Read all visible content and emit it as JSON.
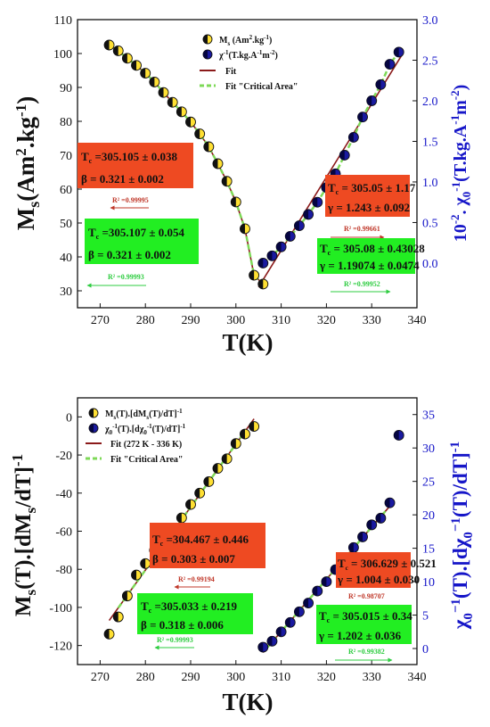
{
  "chart_data": [
    {
      "type": "scatter",
      "xlabel": "T(K)",
      "ylabel": "M_s(Am^2.kg^-1)",
      "ylabel_right": "10^-2. χ0^-1(T.kg.A^-1m^-2)",
      "xlim": [
        265,
        340
      ],
      "ylim": [
        25,
        110
      ],
      "ylim_right": [
        -0.55,
        3.0
      ],
      "xticks": [
        270,
        280,
        290,
        300,
        310,
        320,
        330,
        340
      ],
      "yticks": [
        30,
        40,
        50,
        60,
        70,
        80,
        90,
        100,
        110
      ],
      "yticks_right": [
        0.0,
        0.5,
        1.0,
        1.5,
        2.0,
        2.5,
        3.0
      ],
      "legend": {
        "ms": "M_s (Am^2.kg^-1)",
        "chi": "χ^-1(T.kg.A^-1m^-2)",
        "fit": "Fit",
        "fit_critical": "Fit \"Critical Area\""
      },
      "series": [
        {
          "name": "M_s (Am^2.kg^-1)",
          "axis": "left",
          "x": [
            272,
            274,
            276,
            278,
            280,
            282,
            284,
            286,
            288,
            290,
            292,
            294,
            296,
            298,
            300,
            302,
            304,
            306
          ],
          "y": [
            102.5,
            100.8,
            98.6,
            96.5,
            94.2,
            91.6,
            88.5,
            85.6,
            82.8,
            79.8,
            76.3,
            72.5,
            67.5,
            62.3,
            56.2,
            48.3,
            34.6,
            32.0
          ]
        },
        {
          "name": "χ^-1(T.kg.A^-1m^-2)",
          "axis": "right",
          "x": [
            306,
            308,
            310,
            312,
            314,
            316,
            318,
            320,
            322,
            324,
            326,
            328,
            330,
            332,
            334,
            336
          ],
          "y": [
            0.0,
            0.09,
            0.2,
            0.33,
            0.46,
            0.6,
            0.75,
            0.93,
            1.1,
            1.33,
            1.55,
            1.8,
            2.0,
            2.2,
            2.45,
            2.6
          ]
        }
      ],
      "annotations": {
        "box1": {
          "l1": "T",
          "l1s": "c",
          "l1v": " =305.105 ±  0.038",
          "l2": "β = 0.321 ± 0.002",
          "r2": "R² =0.99995"
        },
        "box2": {
          "l1": "T",
          "l1s": "c",
          "l1v": " =305.107 ±  0.054",
          "l2": "β = 0.321 ± 0.002",
          "r2": "R² =0.99993"
        },
        "box3": {
          "l1": "T",
          "l1s": "c",
          "l1v": " = 305.05 ± 1.17",
          "l2": "γ = 1.243 ± 0.092",
          "r2": "R² =0.99661"
        },
        "box4": {
          "l1": "T",
          "l1s": "c",
          "l1v": " = 305.08 ± 0.43028",
          "l2": "γ = 1.19074 ± 0.0474",
          "r2": "R² =0.99952"
        }
      }
    },
    {
      "type": "scatter",
      "xlabel": "T(K)",
      "ylabel": "M_s(T).[dM_s/dT]^-1",
      "ylabel_right": "χ0^-1(T).[dχ0^-1(T)/dT]^-1",
      "xlim": [
        265,
        340
      ],
      "ylim": [
        -130,
        10
      ],
      "ylim_right": [
        -2.4,
        37.5
      ],
      "xticks": [
        270,
        280,
        290,
        300,
        310,
        320,
        330,
        340
      ],
      "yticks": [
        0,
        -20,
        -40,
        -60,
        -80,
        -100,
        -120
      ],
      "yticks_right": [
        0,
        5,
        10,
        15,
        20,
        25,
        30,
        35
      ],
      "legend": {
        "ms": "M_s(T).[dM_s(T)/dT]^-1",
        "chi": "χ0^-1(T).[dχ0^-1(T)/dT]^-1",
        "fit": "Fit (272 K - 336 K)",
        "fit_critical": "Fit \"Critical Area\""
      },
      "series": [
        {
          "name": "M_s(T).[dM_s(T)/dT]^-1",
          "axis": "left",
          "x": [
            272,
            274,
            276,
            278,
            280,
            282,
            284,
            286,
            288,
            290,
            292,
            294,
            296,
            298,
            300,
            302,
            304
          ],
          "y": [
            -114,
            -105,
            -94,
            -83,
            -77,
            -70,
            -64,
            -60,
            -53,
            -46,
            -40,
            -34,
            -27,
            -22,
            -14,
            -9,
            -5
          ]
        },
        {
          "name": "χ0^-1(T).[dχ0^-1(T)/dT]^-1",
          "axis": "right",
          "x": [
            306,
            308,
            310,
            312,
            314,
            316,
            318,
            320,
            322,
            324,
            326,
            328,
            330,
            332,
            334,
            336
          ],
          "y": [
            0.2,
            1.1,
            2.5,
            3.9,
            5.5,
            6.8,
            8.6,
            10.0,
            11.8,
            13.3,
            15.1,
            16.7,
            18.5,
            19.5,
            21.8,
            31.9
          ]
        }
      ],
      "annotations": {
        "box1": {
          "l1": "T",
          "l1s": "c",
          "l1v": " =304.467 ±  0.446",
          "l2": "β = 0.303 ± 0.007",
          "r2": "R² =0.99194"
        },
        "box2": {
          "l1": "T",
          "l1s": "c",
          "l1v": " =305.033 ±  0.219",
          "l2": "β = 0.318 ± 0.006",
          "r2": "R² =0.99993"
        },
        "box3": {
          "l1": "T",
          "l1s": "c",
          "l1v": " = 306.629 ± 0.521",
          "l2": "γ = 1.004 ± 0.030",
          "r2": "R² =0.98707"
        },
        "box4": {
          "l1": "T",
          "l1s": "c",
          "l1v": " = 305.015 ± 0.34",
          "l2": "γ = 1.202 ± 0.036",
          "r2": "R² =0.99382"
        }
      }
    }
  ],
  "colors": {
    "fit": "#8b1a1a",
    "fit_critical": "#7ed957",
    "ms_marker": "#ffe033",
    "chi_marker": "#1a1aa0",
    "box_red": "#ee4a22",
    "box_green": "#22ee22",
    "right_axis": "#1515c8"
  }
}
